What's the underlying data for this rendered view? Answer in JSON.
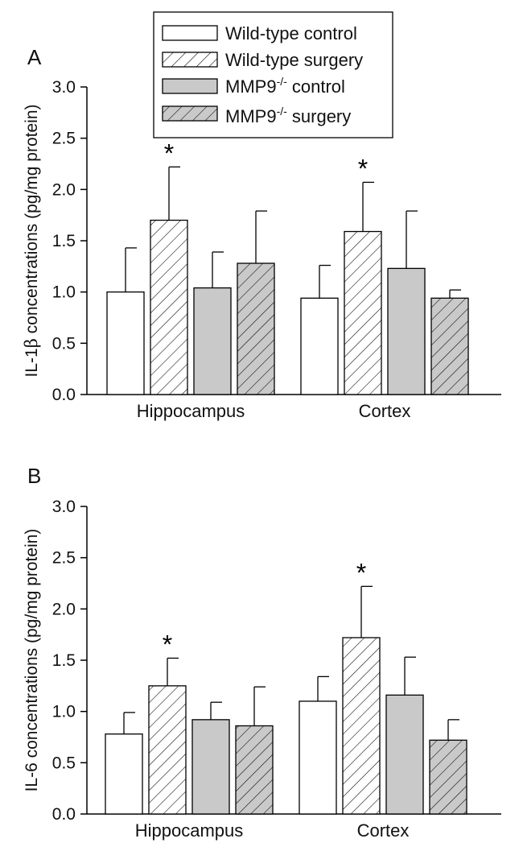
{
  "chart_data": [
    {
      "type": "bar",
      "panel": "A",
      "ylabel_prefix": "IL-1",
      "ylabel_greek": "β",
      "ylabel_suffix": " concentrations (pg/mg protein)",
      "ylim": [
        0,
        3.0
      ],
      "yticks": [
        "0.0",
        "0.5",
        "1.0",
        "1.5",
        "2.0",
        "2.5",
        "3.0"
      ],
      "categories": [
        "Hippocampus",
        "Cortex"
      ],
      "series": [
        {
          "name": "Wild-type control",
          "style": "white",
          "values": [
            1.0,
            0.94
          ],
          "errors": [
            0.43,
            0.32
          ],
          "significant": [
            false,
            false
          ]
        },
        {
          "name": "Wild-type surgery",
          "style": "white-hatch",
          "values": [
            1.7,
            1.59
          ],
          "errors": [
            0.52,
            0.48
          ],
          "significant": [
            true,
            true
          ]
        },
        {
          "name": "MMP9-/- control",
          "style": "gray",
          "values": [
            1.04,
            1.23
          ],
          "errors": [
            0.35,
            0.56
          ],
          "significant": [
            false,
            false
          ]
        },
        {
          "name": "MMP9-/- surgery",
          "style": "gray-hatch",
          "values": [
            1.28,
            0.94
          ],
          "errors": [
            0.51,
            0.08
          ],
          "significant": [
            false,
            false
          ]
        }
      ],
      "significance_marker": "*"
    },
    {
      "type": "bar",
      "panel": "B",
      "ylabel": "IL-6 concentrations (pg/mg protein)",
      "ylim": [
        0,
        3.0
      ],
      "yticks": [
        "0.0",
        "0.5",
        "1.0",
        "1.5",
        "2.0",
        "2.5",
        "3.0"
      ],
      "categories": [
        "Hippocampus",
        "Cortex"
      ],
      "series": [
        {
          "name": "Wild-type control",
          "style": "white",
          "values": [
            0.78,
            1.1
          ],
          "errors": [
            0.21,
            0.24
          ],
          "significant": [
            false,
            false
          ]
        },
        {
          "name": "Wild-type surgery",
          "style": "white-hatch",
          "values": [
            1.25,
            1.72
          ],
          "errors": [
            0.27,
            0.5
          ],
          "significant": [
            true,
            true
          ]
        },
        {
          "name": "MMP9-/- control",
          "style": "gray",
          "values": [
            0.92,
            1.16
          ],
          "errors": [
            0.17,
            0.37
          ],
          "significant": [
            false,
            false
          ]
        },
        {
          "name": "MMP9-/- surgery",
          "style": "gray-hatch",
          "values": [
            0.86,
            0.72
          ],
          "errors": [
            0.38,
            0.2
          ],
          "significant": [
            false,
            false
          ]
        }
      ],
      "significance_marker": "*"
    }
  ],
  "legend": {
    "items": [
      {
        "base": "Wild-type control",
        "sup": "",
        "tail": "",
        "style": "white"
      },
      {
        "base": "Wild-type surgery",
        "sup": "",
        "tail": "",
        "style": "white-hatch"
      },
      {
        "base": "MMP9",
        "sup": "-/-",
        "tail": " control",
        "style": "gray"
      },
      {
        "base": "MMP9",
        "sup": "-/-",
        "tail": " surgery",
        "style": "gray-hatch"
      }
    ]
  },
  "colors": {
    "white_fill": "#ffffff",
    "gray_fill": "#c9c9c9",
    "stroke": "#000000"
  }
}
